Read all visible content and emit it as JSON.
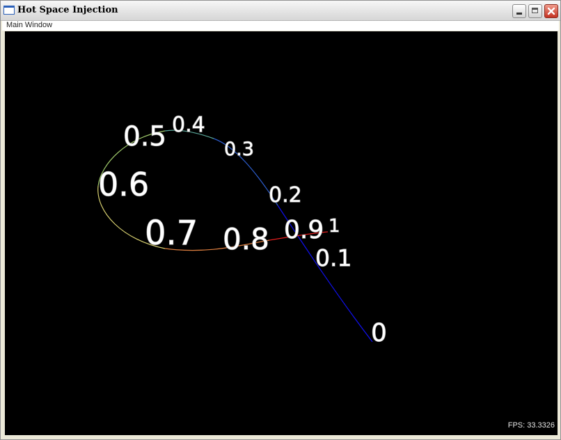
{
  "window": {
    "title": "Hot Space Injection",
    "icon": "app-window-icon",
    "controls": [
      "minimize-icon",
      "maximize-icon",
      "close-icon"
    ]
  },
  "subbar": {
    "label": "Main Window"
  },
  "viewport": {
    "background": "#000000",
    "curve_labels": [
      "0",
      "0.1",
      "0.2",
      "0.3",
      "0.4",
      "0.5",
      "0.6",
      "0.7",
      "0.8",
      "0.9",
      "1"
    ],
    "curve_colors": {
      "start": "#0000ff",
      "middle": "#bfe08a",
      "end": "#ff0000"
    },
    "fps_text": "FPS: 33.3326"
  }
}
